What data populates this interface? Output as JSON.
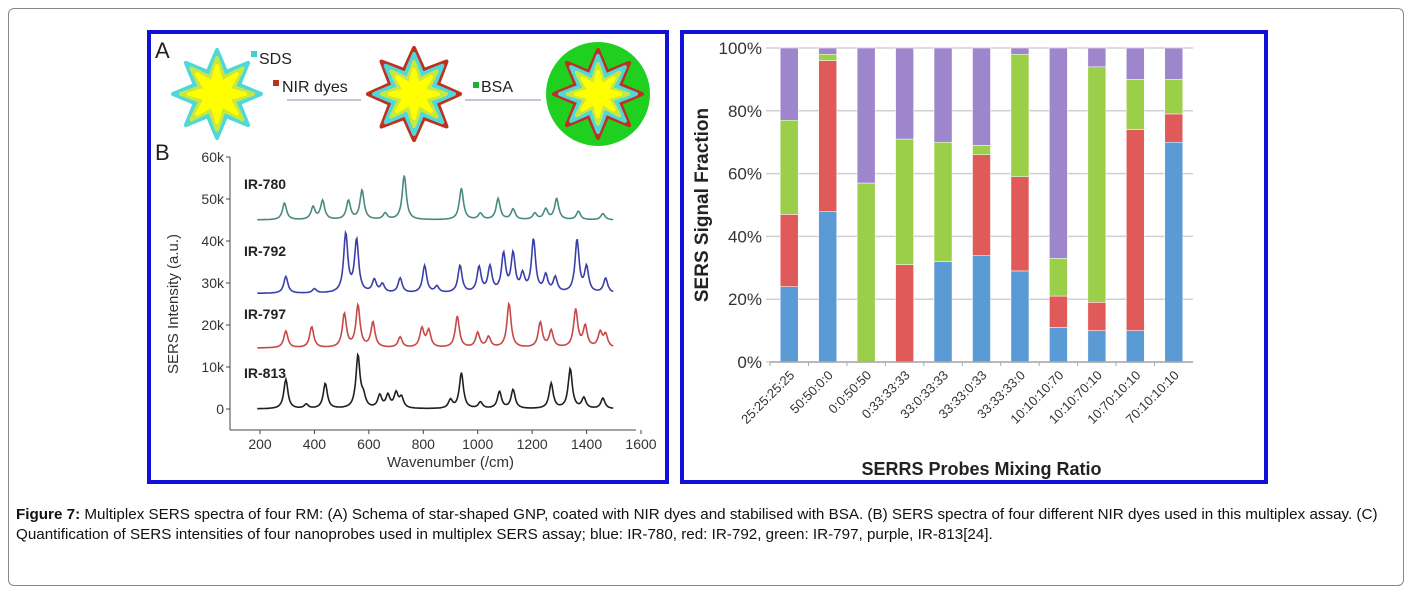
{
  "figure": {
    "caption_label": "Figure 7:",
    "caption_text": " Multiplex SERS spectra of four RM: (A) Schema of star-shaped GNP, coated with NIR dyes and stabilised with BSA. (B) SERS spectra of four different NIR dyes used in this multiplex assay. (C) Quantification of SERS intensities of four nanoprobes used in multiplex SERS assay; blue: IR-780, red: IR-792, green: IR-797, purple, IR-813[24].",
    "schema": {
      "panel_label": "A",
      "sds": "SDS",
      "nir": "NIR dyes",
      "bsa": "BSA"
    }
  },
  "chart_data": [
    {
      "type": "line",
      "panel_label": "B",
      "xlabel": "Wavenumber (/cm)",
      "ylabel": "SERS Intensity (a.u.)",
      "xlim": [
        100,
        1600
      ],
      "ylim": [
        -5000,
        60000
      ],
      "xticks": [
        "200",
        "400",
        "600",
        "800",
        "1000",
        "1200",
        "1400",
        "1600"
      ],
      "yticks": [
        "0",
        "10k",
        "20k",
        "30k",
        "40k",
        "50k",
        "60k"
      ],
      "series": [
        {
          "name": "IR-780",
          "color": "#4a8a80",
          "baseline": 45000,
          "peaks": [
            [
              290,
              4000
            ],
            [
              395,
              3000
            ],
            [
              430,
              4500
            ],
            [
              525,
              4500
            ],
            [
              575,
              7000
            ],
            [
              660,
              1500
            ],
            [
              730,
              10500
            ],
            [
              940,
              7500
            ],
            [
              1010,
              1500
            ],
            [
              1075,
              5000
            ],
            [
              1130,
              2500
            ],
            [
              1210,
              1500
            ],
            [
              1250,
              2500
            ],
            [
              1290,
              5000
            ],
            [
              1370,
              2000
            ],
            [
              1460,
              1500
            ]
          ]
        },
        {
          "name": "IR-792",
          "color": "#3a40a8",
          "baseline": 27500,
          "peaks": [
            [
              295,
              4000
            ],
            [
              400,
              1000
            ],
            [
              515,
              14000
            ],
            [
              555,
              12500
            ],
            [
              620,
              3000
            ],
            [
              650,
              2000
            ],
            [
              715,
              3500
            ],
            [
              805,
              6500
            ],
            [
              850,
              1500
            ],
            [
              935,
              6500
            ],
            [
              1005,
              6000
            ],
            [
              1045,
              6000
            ],
            [
              1095,
              9000
            ],
            [
              1130,
              9000
            ],
            [
              1165,
              4000
            ],
            [
              1205,
              12500
            ],
            [
              1250,
              4000
            ],
            [
              1285,
              3500
            ],
            [
              1365,
              12500
            ],
            [
              1400,
              6000
            ],
            [
              1470,
              3500
            ]
          ]
        },
        {
          "name": "IR-797",
          "color": "#c84848",
          "baseline": 14500,
          "peaks": [
            [
              295,
              4000
            ],
            [
              390,
              5000
            ],
            [
              510,
              8000
            ],
            [
              560,
              10000
            ],
            [
              615,
              6000
            ],
            [
              715,
              2500
            ],
            [
              795,
              4500
            ],
            [
              820,
              4000
            ],
            [
              925,
              7500
            ],
            [
              1000,
              3500
            ],
            [
              1040,
              2500
            ],
            [
              1115,
              10500
            ],
            [
              1230,
              6000
            ],
            [
              1270,
              4000
            ],
            [
              1360,
              9000
            ],
            [
              1395,
              5000
            ],
            [
              1450,
              3500
            ],
            [
              1470,
              3000
            ]
          ]
        },
        {
          "name": "IR-813",
          "color": "#202020",
          "baseline": 0,
          "peaks": [
            [
              295,
              7000
            ],
            [
              370,
              1000
            ],
            [
              440,
              6000
            ],
            [
              560,
              12500
            ],
            [
              580,
              2500
            ],
            [
              640,
              3000
            ],
            [
              670,
              3000
            ],
            [
              700,
              3500
            ],
            [
              720,
              2500
            ],
            [
              900,
              2000
            ],
            [
              940,
              8500
            ],
            [
              1010,
              1500
            ],
            [
              1080,
              4000
            ],
            [
              1130,
              4500
            ],
            [
              1270,
              6000
            ],
            [
              1340,
              9500
            ],
            [
              1390,
              2500
            ],
            [
              1460,
              2500
            ]
          ]
        }
      ]
    },
    {
      "type": "bar",
      "stacked": true,
      "xlabel": "SERRS Probes Mixing Ratio",
      "ylabel": "SERS Signal Fraction",
      "ylim": [
        0,
        100
      ],
      "yticks": [
        "0%",
        "20%",
        "40%",
        "60%",
        "80%",
        "100%"
      ],
      "categories": [
        "25:25:25:25",
        "50:50:0:0",
        "0:0:50:50",
        "0:33:33:33",
        "33:0:33:33",
        "33:33:0:33",
        "33:33:33:0",
        "10:10:10:70",
        "10:10:70:10",
        "10:70:10:10",
        "70:10:10:10"
      ],
      "series": [
        {
          "name": "IR-780",
          "color": "#5b9bd5",
          "values": [
            24,
            48,
            0,
            0,
            32,
            34,
            29,
            11,
            10,
            10,
            70
          ]
        },
        {
          "name": "IR-792",
          "color": "#e05a5a",
          "values": [
            23,
            48,
            0,
            31,
            0,
            32,
            30,
            10,
            9,
            64,
            9
          ]
        },
        {
          "name": "IR-797",
          "color": "#9bcf4a",
          "values": [
            30,
            2,
            57,
            40,
            38,
            3,
            39,
            12,
            75,
            16,
            11
          ]
        },
        {
          "name": "IR-813",
          "color": "#9d86cc",
          "values": [
            23,
            2,
            43,
            29,
            30,
            31,
            2,
            67,
            6,
            10,
            10
          ]
        }
      ]
    }
  ]
}
